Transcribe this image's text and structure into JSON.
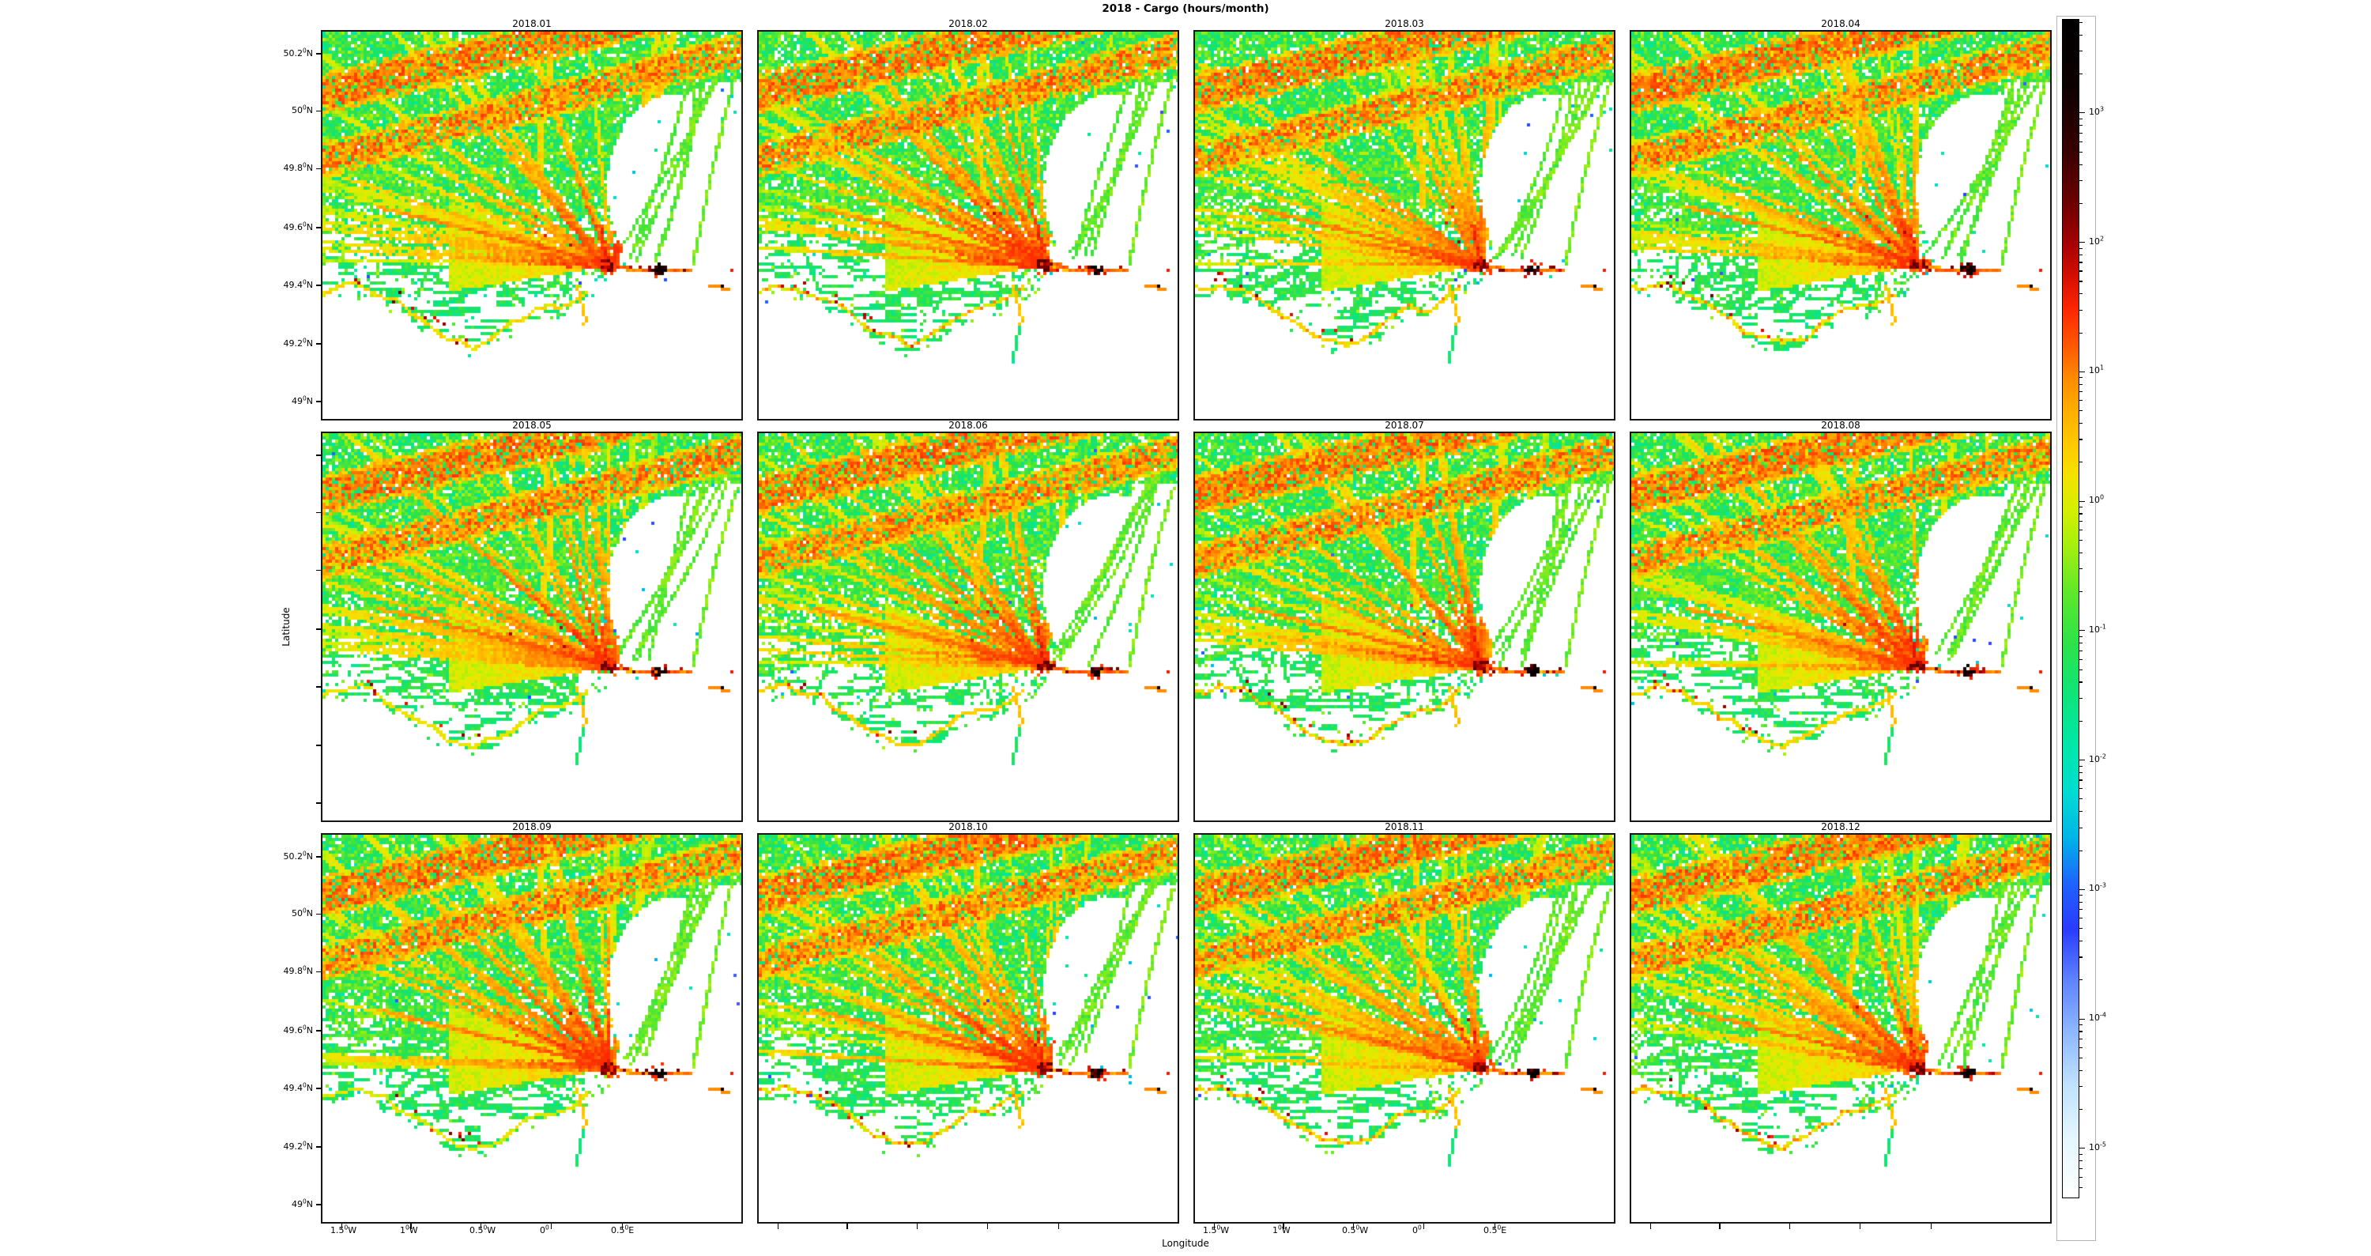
{
  "figure": {
    "title": "2018 - Cargo (hours/month)",
    "xlabel": "Longitude",
    "ylabel": "Latitude"
  },
  "chart_data": {
    "type": "heatmap",
    "layout": "3x4 grid of monthly vessel-density maps, shared axes, log-scale colorbar on right",
    "panels": [
      "2018.01",
      "2018.02",
      "2018.03",
      "2018.04",
      "2018.05",
      "2018.06",
      "2018.07",
      "2018.08",
      "2018.09",
      "2018.10",
      "2018.11",
      "2018.12"
    ],
    "units": "hours/month",
    "x_axis": {
      "label": "Longitude",
      "ticks": [
        {
          "base": "1.5",
          "deg": "0",
          "suffix": "W",
          "frac": 0.0453
        },
        {
          "base": "1",
          "deg": "0",
          "suffix": "W",
          "frac": 0.2113
        },
        {
          "base": "0.5",
          "deg": "0",
          "suffix": "W",
          "frac": 0.3774
        },
        {
          "base": "0",
          "deg": "0",
          "suffix": "",
          "frac": 0.5453
        },
        {
          "base": "0.5",
          "deg": "0",
          "suffix": "E",
          "frac": 0.7151
        }
      ],
      "labeled_columns": [
        0,
        2
      ]
    },
    "y_axis": {
      "label": "Latitude",
      "ticks": [
        {
          "base": "50.2",
          "deg": "0",
          "suffix": "N",
          "frac": 0.0571
        },
        {
          "base": "50",
          "deg": "0",
          "suffix": "N",
          "frac": 0.2041
        },
        {
          "base": "49.8",
          "deg": "0",
          "suffix": "N",
          "frac": 0.3531
        },
        {
          "base": "49.6",
          "deg": "0",
          "suffix": "N",
          "frac": 0.5061
        },
        {
          "base": "49.4",
          "deg": "0",
          "suffix": "N",
          "frac": 0.6551
        },
        {
          "base": "49.2",
          "deg": "0",
          "suffix": "N",
          "frac": 0.8061
        },
        {
          "base": "49",
          "deg": "0",
          "suffix": "N",
          "frac": 0.9551
        }
      ],
      "labeled_rows": [
        0,
        2
      ]
    },
    "extent": {
      "lon_min": -1.64,
      "lon_max": 1.37,
      "lat_min": 48.93,
      "lat_max": 50.28
    },
    "colorbar": {
      "scale": "log",
      "t_top": 3.72,
      "t_bottom": -5.38,
      "mantissa": "10",
      "major_exponents": [
        "3",
        "2",
        "1",
        "0",
        "-1",
        "-2",
        "-3",
        "-4",
        "-5"
      ],
      "colormap": [
        [
          3.72,
          "#000000"
        ],
        [
          3.2,
          "#0d0000"
        ],
        [
          2.7,
          "#3a0000"
        ],
        [
          2.3,
          "#6e0000"
        ],
        [
          2.0,
          "#a40000"
        ],
        [
          1.75,
          "#d40e00"
        ],
        [
          1.5,
          "#fb2500"
        ],
        [
          1.2,
          "#ff5a00"
        ],
        [
          0.95,
          "#ff8c00"
        ],
        [
          0.7,
          "#ffaf00"
        ],
        [
          0.45,
          "#ffc900"
        ],
        [
          0.2,
          "#f4e200"
        ],
        [
          -0.05,
          "#d6ef00"
        ],
        [
          -0.35,
          "#a4ef10"
        ],
        [
          -0.7,
          "#5fe82a"
        ],
        [
          -1.1,
          "#2ce24a"
        ],
        [
          -1.5,
          "#0ee47c"
        ],
        [
          -1.9,
          "#00e7ab"
        ],
        [
          -2.25,
          "#00dcd4"
        ],
        [
          -2.6,
          "#00b4e6"
        ],
        [
          -2.95,
          "#1f63ff"
        ],
        [
          -3.3,
          "#2a3bff"
        ],
        [
          -3.7,
          "#5f84ff"
        ],
        [
          -4.1,
          "#8fb8ff"
        ],
        [
          -4.5,
          "#bfe2ff"
        ],
        [
          -4.9,
          "#e3f6ff"
        ],
        [
          -5.38,
          "#ffffff"
        ]
      ]
    },
    "features": [
      "Two parallel orange traffic-separation lanes (~10-30 h/month) run WSW-ENE across the upper left of every panel",
      "Dense speckled green web (~0.05-0.5 h/month) of crossing tracks fills the upper sea triangle",
      "Yellow fan of routes converges eastward to a red/black port hotspot (>100 h/month) near 49.46N between 0.2E-0.8E (Le Havre / Seine approach)",
      "Orange lane with red pixels continues east of the hotspot along the Seine waterway",
      "Yellow-green lane descends mid-panel to the Seine estuary hook; thin green spur continues south",
      "Scattered isolated cyan/blue/navy cells (~1e-3 h/month) and red coastal anchorage dots on the western shore",
      "White areas: land along the southern coast and a low-traffic bay east of the hotspot crossed by a few green arcs to the NE corner"
    ]
  }
}
